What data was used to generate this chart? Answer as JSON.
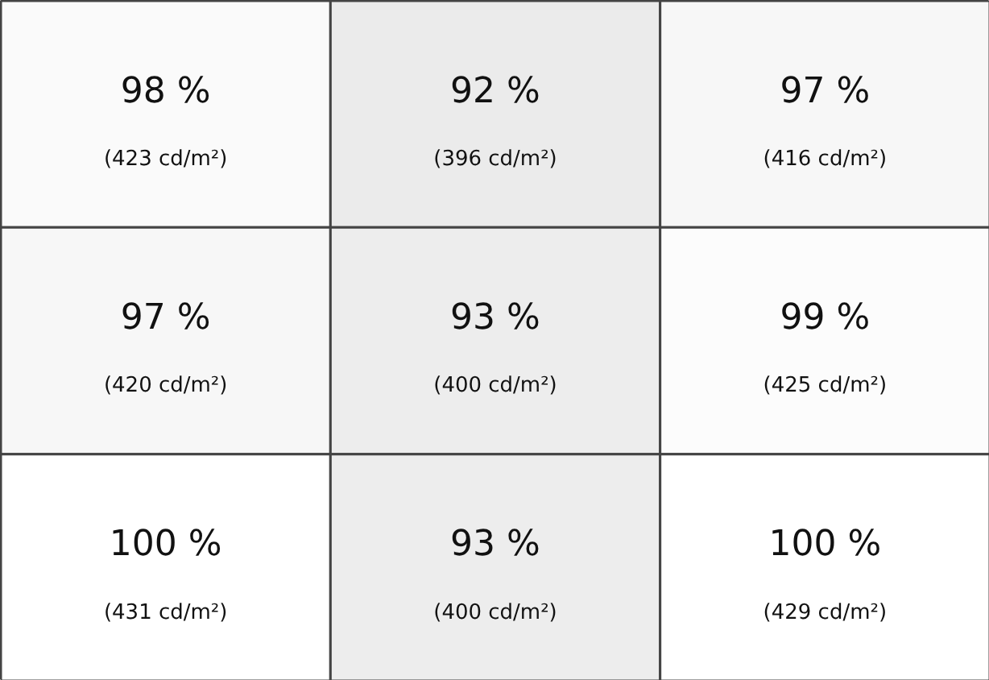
{
  "chart_data": {
    "type": "heatmap",
    "categories": [
      null,
      null,
      null
    ],
    "y_categories": [
      null,
      null,
      null
    ],
    "cells": [
      [
        98,
        92,
        97
      ],
      [
        97,
        93,
        99
      ],
      [
        100,
        93,
        100
      ]
    ],
    "cell_labels": [
      [
        "98 %",
        "92 %",
        "97 %"
      ],
      [
        "97 %",
        "93 %",
        "99 %"
      ],
      [
        "100 %",
        "93 %",
        "100 %"
      ]
    ],
    "annotations": [
      "(423 cd/m²)",
      "(396 cd/m²)",
      "(416 cd/m²)",
      "(420 cd/m²)",
      "(400 cd/m²)",
      "(425 cd/m²)",
      "(431 cd/m²)",
      "(400 cd/m²)",
      "(429 cd/m²)"
    ]
  }
}
